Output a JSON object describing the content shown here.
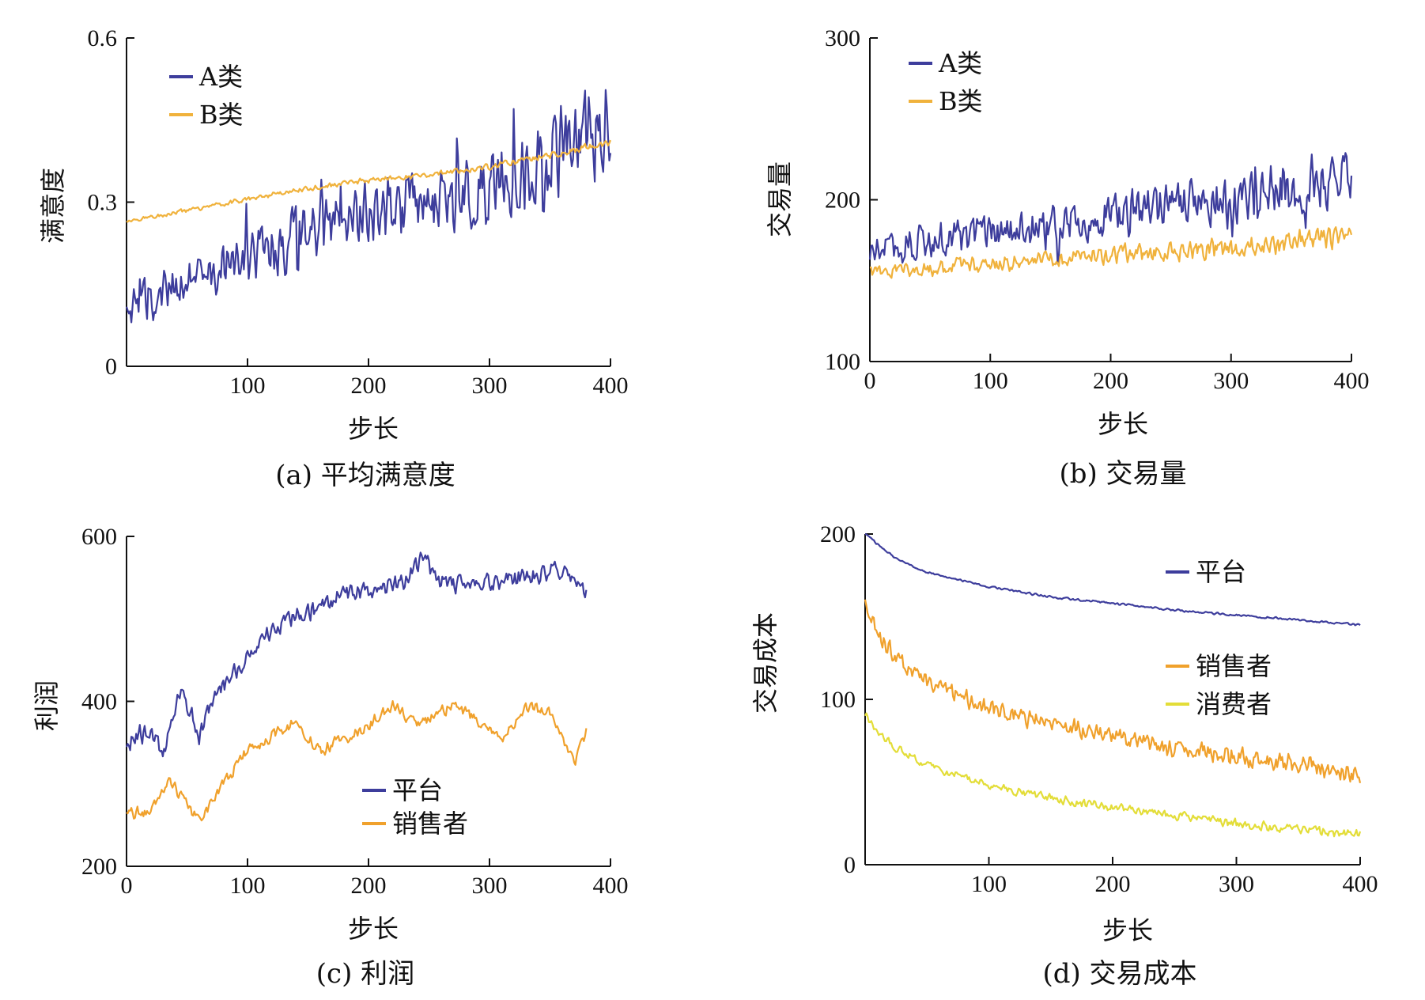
{
  "chart_data": [
    {
      "id": "a",
      "type": "line",
      "caption": "(a) 平均满意度",
      "xlabel": "步长",
      "ylabel": "满意度",
      "xlim": [
        0,
        400
      ],
      "ylim": [
        0,
        0.6
      ],
      "xticks": [
        100,
        200,
        300,
        400
      ],
      "xtick_labels": [
        "100",
        "200",
        "300",
        "400"
      ],
      "yticks": [
        0,
        0.3,
        0.6
      ],
      "ytick_labels": [
        "0",
        "0.3",
        "0.6"
      ],
      "legend_position": "top-left",
      "series": [
        {
          "name": "A类",
          "color": "#3d3d9c",
          "noise": 0.045,
          "noise_growth": 2.2,
          "jumps": true,
          "x": [
            0,
            50,
            100,
            150,
            200,
            250,
            300,
            350,
            380,
            400
          ],
          "y": [
            0.105,
            0.16,
            0.2,
            0.245,
            0.275,
            0.3,
            0.33,
            0.38,
            0.42,
            0.44
          ]
        },
        {
          "name": "B类",
          "color": "#f0b23c",
          "noise": 0.004,
          "noise_growth": 2,
          "x": [
            0,
            50,
            100,
            150,
            200,
            250,
            300,
            350,
            400
          ],
          "y": [
            0.265,
            0.285,
            0.305,
            0.325,
            0.34,
            0.35,
            0.365,
            0.385,
            0.41
          ]
        }
      ]
    },
    {
      "id": "b",
      "type": "line",
      "caption": "(b) 交易量",
      "xlabel": "步长",
      "ylabel": "交易量",
      "xlim": [
        0,
        400
      ],
      "ylim": [
        100,
        300
      ],
      "xticks": [
        0,
        100,
        200,
        300,
        400
      ],
      "xtick_labels": [
        "0",
        "100",
        "200",
        "300",
        "400"
      ],
      "yticks": [
        100,
        200,
        300
      ],
      "ytick_labels": [
        "100",
        "200",
        "300"
      ],
      "legend_position": "top-left",
      "series": [
        {
          "name": "A类",
          "color": "#3d3d9c",
          "noise": 12,
          "noise_growth": 1.8,
          "jumps": true,
          "x": [
            0,
            50,
            100,
            150,
            200,
            250,
            300,
            350,
            400
          ],
          "y": [
            168,
            174,
            178,
            184,
            192,
            196,
            200,
            208,
            212
          ]
        },
        {
          "name": "B类",
          "color": "#f0b23c",
          "noise": 5,
          "noise_growth": 1.8,
          "x": [
            0,
            50,
            100,
            150,
            200,
            250,
            300,
            350,
            400
          ],
          "y": [
            155,
            158,
            160,
            163,
            166,
            168,
            170,
            174,
            178
          ]
        }
      ]
    },
    {
      "id": "c",
      "type": "line",
      "caption": "(c) 利润",
      "xlabel": "步长",
      "ylabel": "利润",
      "xlim": [
        0,
        400
      ],
      "ylim": [
        200,
        600
      ],
      "xticks": [
        0,
        100,
        200,
        300,
        400
      ],
      "xtick_labels": [
        "0",
        "100",
        "200",
        "300",
        "400"
      ],
      "yticks": [
        200,
        400,
        600
      ],
      "ytick_labels": [
        "200",
        "400",
        "600"
      ],
      "legend_position": "bottom-center",
      "series": [
        {
          "name": "平台",
          "color": "#3d3d9c",
          "noise": 14,
          "noise_growth": 1,
          "x": [
            0,
            20,
            30,
            45,
            60,
            75,
            100,
            120,
            150,
            180,
            200,
            230,
            245,
            260,
            280,
            300,
            330,
            360,
            380
          ],
          "y": [
            350,
            365,
            335,
            415,
            360,
            410,
            455,
            490,
            510,
            530,
            535,
            545,
            575,
            545,
            540,
            545,
            550,
            560,
            530
          ]
        },
        {
          "name": "销售者",
          "color": "#f0a12c",
          "noise": 9,
          "noise_growth": 1,
          "x": [
            0,
            20,
            35,
            45,
            60,
            80,
            100,
            140,
            160,
            200,
            220,
            240,
            270,
            300,
            310,
            330,
            350,
            370,
            380
          ],
          "y": [
            265,
            265,
            305,
            285,
            255,
            300,
            340,
            375,
            340,
            370,
            395,
            370,
            395,
            370,
            350,
            395,
            385,
            325,
            365
          ]
        }
      ]
    },
    {
      "id": "d",
      "type": "line",
      "caption": "(d) 交易成本",
      "xlabel": "步长",
      "ylabel": "交易成本",
      "xlim": [
        0,
        400
      ],
      "ylim": [
        0,
        200
      ],
      "xticks": [
        100,
        200,
        300,
        400
      ],
      "xtick_labels": [
        "100",
        "200",
        "300",
        "400"
      ],
      "yticks": [
        0,
        100,
        200
      ],
      "ytick_labels": [
        "0",
        "100",
        "200"
      ],
      "legend_position": "right",
      "series": [
        {
          "name": "平台",
          "color": "#3d3d9c",
          "noise": 0.8,
          "noise_growth": 1,
          "x": [
            0,
            25,
            50,
            100,
            150,
            200,
            250,
            300,
            350,
            400
          ],
          "y": [
            200,
            185,
            177,
            168,
            162,
            158,
            154,
            151,
            148,
            145
          ]
        },
        {
          "name": "销售者",
          "color": "#f0a12c",
          "noise": 6,
          "noise_growth": 1.3,
          "x": [
            0,
            10,
            25,
            50,
            100,
            150,
            200,
            250,
            300,
            350,
            400
          ],
          "y": [
            160,
            140,
            125,
            110,
            95,
            85,
            78,
            70,
            65,
            60,
            55
          ]
        },
        {
          "name": "消费者",
          "color": "#e3dd38",
          "noise": 3,
          "noise_growth": 1.2,
          "x": [
            0,
            10,
            25,
            50,
            100,
            150,
            200,
            250,
            300,
            350,
            400
          ],
          "y": [
            92,
            80,
            70,
            60,
            48,
            40,
            35,
            30,
            25,
            21,
            18
          ]
        }
      ]
    }
  ]
}
